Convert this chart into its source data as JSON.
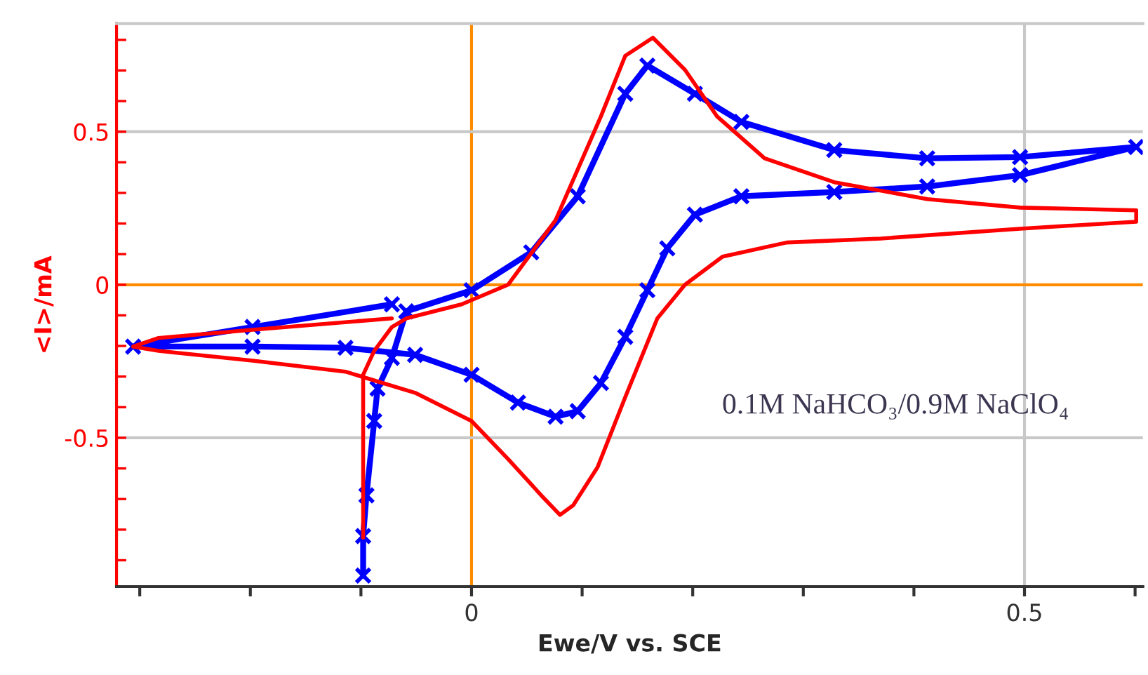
{
  "chart_data": {
    "type": "line",
    "xlabel": "Ewe/V vs. SCE",
    "ylabel": "<I>/mA",
    "xlim": [
      -0.321,
      0.607
    ],
    "ylim": [
      -0.986,
      0.853
    ],
    "xticks": [
      {
        "value": -0.3,
        "label": null
      },
      {
        "value": -0.2,
        "label": null
      },
      {
        "value": -0.1,
        "label": null
      },
      0,
      {
        "value": 0.1,
        "label": null
      },
      {
        "value": 0.2,
        "label": null
      },
      {
        "value": 0.3,
        "label": null
      },
      {
        "value": 0.4,
        "label": null
      },
      0.5,
      {
        "value": 0.6,
        "label": null
      }
    ],
    "yticks": [
      {
        "value": -0.9,
        "label": null
      },
      {
        "value": -0.8,
        "label": null
      },
      {
        "value": -0.7,
        "label": null
      },
      {
        "value": -0.6,
        "label": null
      },
      -0.5,
      {
        "value": -0.4,
        "label": null
      },
      {
        "value": -0.3,
        "label": null
      },
      {
        "value": -0.2,
        "label": null
      },
      {
        "value": -0.1,
        "label": null
      },
      0,
      {
        "value": 0.1,
        "label": null
      },
      {
        "value": 0.2,
        "label": null
      },
      {
        "value": 0.3,
        "label": null
      },
      {
        "value": 0.4,
        "label": null
      },
      0.5,
      {
        "value": 0.6,
        "label": null
      },
      {
        "value": 0.7,
        "label": null
      },
      {
        "value": 0.8,
        "label": null
      }
    ],
    "grid": true,
    "annotations": [
      "0.1M NaHCO₃/0.9M NaClO₄"
    ],
    "series": [
      {
        "color": "#0000ff",
        "marker": "cross",
        "x": [
          -0.098,
          -0.098,
          -0.095,
          -0.088,
          -0.085,
          -0.072,
          -0.059,
          0.0,
          0.054,
          0.096,
          0.139,
          0.159,
          0.202,
          0.244,
          0.328,
          0.412,
          0.496,
          0.601,
          0.496,
          0.412,
          0.328,
          0.244,
          0.202,
          0.177,
          0.159,
          0.139,
          0.117,
          0.096,
          0.076,
          0.042,
          0.0,
          -0.051,
          -0.114,
          -0.198,
          -0.306,
          -0.198,
          -0.072
        ],
        "values": [
          -0.95,
          -0.821,
          -0.688,
          -0.445,
          -0.339,
          -0.239,
          -0.087,
          -0.018,
          0.106,
          0.289,
          0.624,
          0.716,
          0.624,
          0.532,
          0.44,
          0.413,
          0.417,
          0.45,
          0.358,
          0.321,
          0.303,
          0.289,
          0.229,
          0.119,
          -0.018,
          -0.17,
          -0.321,
          -0.413,
          -0.431,
          -0.385,
          -0.294,
          -0.229,
          -0.206,
          -0.202,
          -0.202,
          -0.138,
          -0.064
        ]
      },
      {
        "color": "#ff0000",
        "marker": "none",
        "x": [
          -0.098,
          -0.098,
          -0.088,
          -0.072,
          -0.059,
          -0.009,
          0.033,
          0.076,
          0.117,
          0.139,
          0.164,
          0.193,
          0.222,
          0.265,
          0.328,
          0.412,
          0.496,
          0.601,
          0.601,
          0.496,
          0.37,
          0.285,
          0.227,
          0.193,
          0.168,
          0.139,
          0.114,
          0.092,
          0.08,
          0.063,
          0.033,
          0.0,
          -0.051,
          -0.114,
          -0.198,
          -0.283,
          -0.306,
          -0.283,
          -0.198,
          -0.072
        ],
        "values": [
          -0.826,
          -0.294,
          -0.216,
          -0.138,
          -0.11,
          -0.064,
          0.0,
          0.211,
          0.55,
          0.748,
          0.807,
          0.702,
          0.55,
          0.413,
          0.335,
          0.28,
          0.252,
          0.243,
          0.206,
          0.183,
          0.151,
          0.138,
          0.092,
          0.0,
          -0.11,
          -0.367,
          -0.596,
          -0.72,
          -0.752,
          -0.688,
          -0.569,
          -0.445,
          -0.353,
          -0.284,
          -0.248,
          -0.216,
          -0.202,
          -0.174,
          -0.147,
          -0.11
        ]
      }
    ]
  }
}
